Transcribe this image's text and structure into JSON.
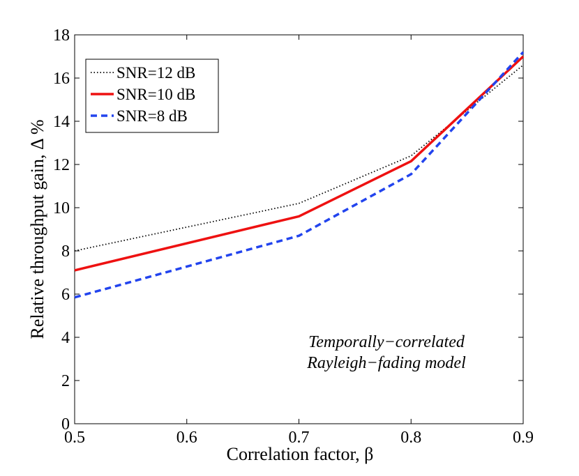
{
  "chart_data": {
    "type": "line",
    "xlabel": "Correlation factor, β",
    "ylabel": "Relative throughput gain,  Δ %",
    "xlim": [
      0.5,
      0.9
    ],
    "ylim": [
      0,
      18
    ],
    "x_ticks": [
      "0.5",
      "0.6",
      "0.7",
      "0.8",
      "0.9"
    ],
    "y_ticks": [
      "0",
      "2",
      "4",
      "6",
      "8",
      "10",
      "12",
      "14",
      "16",
      "18"
    ],
    "x": [
      0.5,
      0.7,
      0.8,
      0.9
    ],
    "series": [
      {
        "name": "SNR=12 dB",
        "values": [
          8.0,
          10.2,
          12.4,
          16.6
        ],
        "color": "#000000",
        "style": "dotted"
      },
      {
        "name": "SNR=10 dB",
        "values": [
          7.1,
          9.6,
          12.15,
          17.0
        ],
        "color": "#ee1111",
        "style": "solid"
      },
      {
        "name": "SNR=8 dB",
        "values": [
          5.85,
          8.7,
          11.55,
          17.2
        ],
        "color": "#2244ee",
        "style": "dashed"
      }
    ],
    "legend_position": "top-left",
    "annotation": [
      "Temporally−correlated",
      "Rayleigh−fading model"
    ],
    "grid": false
  }
}
